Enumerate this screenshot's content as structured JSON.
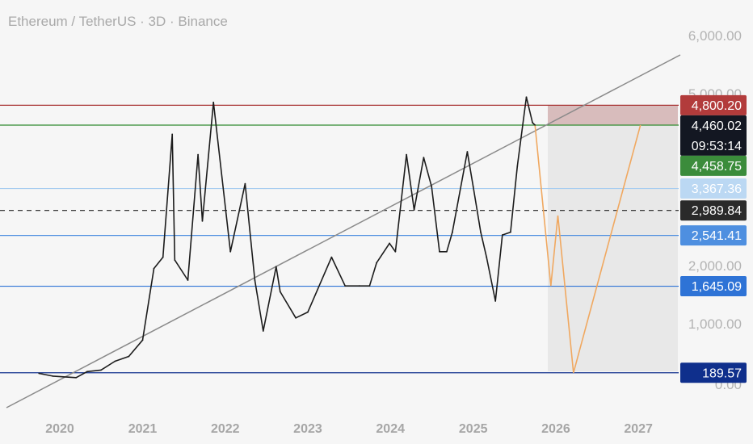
{
  "header": {
    "title": "Ethereum / TetherUS · 3D · Binance"
  },
  "chart_data": {
    "type": "line",
    "title": "Ethereum / TetherUS · 3D · Binance",
    "xlabel": "",
    "ylabel": "",
    "x_ticks": [
      "2020",
      "2021",
      "2022",
      "2023",
      "2024",
      "2025",
      "2026",
      "2027"
    ],
    "y_ticks": [
      "6,000.00",
      "5,000.00",
      "2,000.00",
      "1,000.00",
      "0.00"
    ],
    "ylim": [
      0,
      6000
    ],
    "grid": false,
    "series": [
      {
        "x": [
          "2019-10-01",
          "2019-12-01",
          "2020-03-13",
          "2020-05-01",
          "2020-07-01",
          "2020-09-01",
          "2020-11-01",
          "2021-01-01",
          "2021-02-20",
          "2021-04-01",
          "2021-05-12",
          "2021-05-23",
          "2021-07-20",
          "2021-09-03",
          "2021-09-22",
          "2021-11-10",
          "2022-01-24",
          "2022-03-30",
          "2022-05-12",
          "2022-06-18",
          "2022-08-14",
          "2022-09-01",
          "2022-11-09",
          "2023-01-01",
          "2023-04-16",
          "2023-06-15",
          "2023-08-17",
          "2023-10-01",
          "2023-11-01",
          "2023-12-28",
          "2024-01-23",
          "2024-03-12",
          "2024-04-15",
          "2024-05-27",
          "2024-07-01",
          "2024-08-05",
          "2024-09-06",
          "2024-10-01",
          "2024-12-06",
          "2025-01-01",
          "2025-02-03",
          "2025-03-01",
          "2025-04-09",
          "2025-05-10",
          "2025-06-15",
          "2025-07-15",
          "2025-08-24",
          "2025-09-20",
          "2025-10-01"
        ],
        "values": [
          180,
          135,
          110,
          210,
          235,
          380,
          460,
          730,
          1950,
          2150,
          4300,
          2100,
          1750,
          3950,
          2800,
          4850,
          2250,
          3450,
          1750,
          880,
          1980,
          1550,
          1100,
          1200,
          2150,
          1650,
          1650,
          1650,
          2050,
          2400,
          2250,
          3950,
          3000,
          3900,
          3400,
          2250,
          2250,
          2600,
          4000,
          3400,
          2600,
          2150,
          1390,
          2550,
          2600,
          3750,
          4940,
          4500,
          4460
        ]
      }
    ],
    "price_lines": [
      {
        "label": "4,800.20",
        "value": 4800.2,
        "color": "#b23b3b",
        "line": "#a83232"
      },
      {
        "label": "4,460.02",
        "value": 4460.02,
        "sublabel": "09:53:14",
        "color": "#131722",
        "line": null
      },
      {
        "label": "4,458.75",
        "value": 4458.75,
        "color": "#3b8c3b",
        "line": "#2f8a2f"
      },
      {
        "label": "3,367.36",
        "value": 3367.36,
        "color": "#bbd8f3",
        "line": "#a8cdf0",
        "text_color": "#131722"
      },
      {
        "label": "2,989.84",
        "value": 2989.84,
        "color": "#2a2a2a",
        "line": "#222222",
        "dashed": true
      },
      {
        "label": "2,541.41",
        "value": 2541.41,
        "color": "#4e8fe0",
        "line": "#4e8fe0"
      },
      {
        "label": "1,645.09",
        "value": 1645.09,
        "color": "#2e73d6",
        "line": "#2e73d6"
      },
      {
        "label": "189.57",
        "value": 189.57,
        "color": "#0f2f8c",
        "line": "#0f2f8c"
      }
    ],
    "projection": {
      "x": [
        "2025-10-01",
        "2025-12-10",
        "2026-01-10",
        "2026-03-20",
        "2027-01-10"
      ],
      "values": [
        4460,
        1650,
        2900,
        190,
        4460
      ],
      "color": "#f0a860"
    }
  }
}
